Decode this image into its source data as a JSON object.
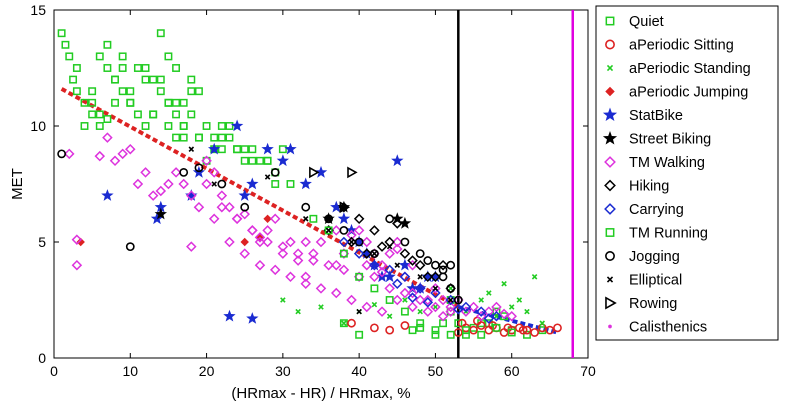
{
  "chart_data": {
    "type": "scatter",
    "title": "",
    "xlabel": "(HRmax - HR) / HRmax, %",
    "ylabel": "MET",
    "xlim": [
      0,
      70
    ],
    "ylim": [
      0,
      15
    ],
    "xticks": [
      "0",
      "10",
      "20",
      "30",
      "40",
      "50",
      "60",
      "70"
    ],
    "yticks": [
      "0",
      "5",
      "10",
      "15"
    ],
    "grid": false,
    "legend_position": "right-outside",
    "series": [
      {
        "name": "Quiet",
        "marker": "square-open",
        "color": "#22cc22",
        "x": [
          1,
          1.5,
          2,
          3,
          2.5,
          3,
          4,
          5,
          6,
          7,
          8,
          9,
          6,
          7,
          5,
          6,
          4,
          5,
          7,
          8,
          10,
          11,
          12,
          13,
          14,
          15,
          16,
          17,
          14,
          15,
          16,
          17,
          18,
          19,
          20,
          21,
          22,
          23,
          24,
          25,
          26,
          27,
          28,
          15,
          16,
          17,
          18,
          19,
          20,
          22,
          24,
          26,
          28,
          30,
          16,
          17,
          18,
          13,
          14,
          15,
          12,
          13,
          10,
          11,
          12,
          9,
          10,
          8,
          9,
          19,
          21,
          22,
          23,
          25,
          29,
          38,
          40,
          47,
          48,
          50,
          51,
          52,
          54,
          56,
          58,
          60,
          62,
          64,
          55,
          57,
          59,
          52,
          53
        ],
        "y": [
          14,
          13.5,
          13,
          12.5,
          12,
          11.5,
          11,
          10.5,
          10,
          12.5,
          12,
          13,
          13,
          13.5,
          11.5,
          10.5,
          10,
          11,
          10.3,
          11,
          11,
          10.5,
          10,
          10.5,
          11.5,
          10,
          9.5,
          10,
          14,
          13,
          12.5,
          11,
          11.5,
          11.5,
          10,
          9.5,
          10,
          9.5,
          9,
          8.5,
          9,
          8.5,
          8.5,
          11,
          10.5,
          10,
          10.5,
          9.5,
          8.5,
          9,
          9,
          8.5,
          8.5,
          9,
          11,
          9.5,
          12,
          12,
          12,
          11,
          12.5,
          10.5,
          11,
          12.5,
          12,
          12.5,
          11.5,
          12,
          11.5,
          9.5,
          9,
          9.5,
          10,
          9,
          7.5,
          1.5,
          1,
          1.2,
          1.3,
          1,
          1.5,
          2.5,
          1,
          1.5,
          2,
          1.2,
          1,
          1.2,
          1.3,
          1.5,
          1.8,
          2,
          1.5
        ]
      },
      {
        "name": "aPeriodic Sitting",
        "marker": "circle-open",
        "color": "#dd2222",
        "x": [
          53,
          54,
          55,
          56,
          57,
          58,
          59,
          60,
          61,
          62,
          63,
          64,
          65,
          66,
          53.5,
          55.5,
          57.5,
          59.5,
          61.5,
          39,
          42,
          44,
          46
        ],
        "y": [
          1.1,
          1.3,
          1.2,
          1.4,
          1.2,
          1.3,
          1.1,
          1.2,
          1.3,
          1.2,
          1.1,
          1.3,
          1.2,
          1.3,
          1.5,
          1.6,
          1.4,
          1.3,
          1.2,
          1.5,
          1.3,
          1.2,
          1.4
        ]
      },
      {
        "name": "aPeriodic Standing",
        "marker": "x-small",
        "color": "#22cc22",
        "x": [
          30,
          32,
          35,
          38,
          40,
          42,
          44,
          46,
          48,
          50,
          52,
          54,
          56,
          58,
          60,
          62,
          64,
          57,
          59,
          61,
          63
        ],
        "y": [
          2.5,
          2,
          2.2,
          1.5,
          2,
          2.3,
          1.8,
          2.5,
          2,
          2.2,
          3,
          2,
          2.5,
          1.8,
          2.2,
          2,
          1.5,
          2.8,
          3.2,
          2.5,
          3.5
        ]
      },
      {
        "name": "aPeriodic Jumping",
        "marker": "diamond-filled",
        "color": "#dd2222",
        "x": [
          3.5,
          25,
          27,
          28
        ],
        "y": [
          5,
          5,
          5.2,
          6
        ]
      },
      {
        "name": "StatBike",
        "marker": "star-filled",
        "color": "#1a2bd1",
        "x": [
          7,
          13.5,
          14,
          18,
          19,
          21,
          24,
          25,
          26,
          28,
          30,
          31,
          33,
          35,
          37,
          38,
          39,
          40,
          41,
          42,
          43,
          44,
          45,
          46,
          47,
          48,
          49,
          50,
          23,
          26
        ],
        "y": [
          7,
          6,
          6.5,
          7,
          8,
          9,
          10,
          7,
          7.5,
          9,
          8.5,
          9,
          7.5,
          8,
          6.5,
          6,
          5.5,
          5,
          4.5,
          4,
          3.5,
          3.5,
          8.5,
          4,
          3,
          3,
          3.5,
          3.5,
          1.8,
          1.7
        ]
      },
      {
        "name": "Street Biking",
        "marker": "star-filled",
        "color": "#000000",
        "x": [
          14,
          36,
          38,
          45,
          46
        ],
        "y": [
          6.2,
          6,
          6.5,
          6,
          5.8
        ]
      },
      {
        "name": "TM Walking",
        "marker": "diamond-open",
        "color": "#dd33dd",
        "x": [
          2,
          3,
          3,
          6,
          7,
          8,
          9,
          10,
          11,
          12,
          13,
          14,
          15,
          16,
          17,
          18,
          19,
          20,
          21,
          22,
          23,
          24,
          25,
          26,
          27,
          28,
          29,
          30,
          31,
          32,
          33,
          34,
          35,
          36,
          37,
          38,
          39,
          40,
          41,
          42,
          43,
          44,
          45,
          46,
          47,
          48,
          49,
          50,
          51,
          52,
          53,
          54,
          55,
          56,
          57,
          58,
          59,
          60,
          20,
          22,
          24,
          26,
          28,
          30,
          32,
          34,
          36,
          38,
          40,
          42,
          44,
          46,
          48,
          50,
          52,
          25,
          27,
          29,
          31,
          33,
          35,
          37,
          39,
          41,
          43,
          45,
          47,
          49,
          51,
          18,
          21,
          23,
          27,
          33,
          37,
          39,
          41,
          43,
          45,
          47
        ],
        "y": [
          8.8,
          5.1,
          4,
          8.7,
          9.5,
          8.5,
          8.8,
          9,
          7.5,
          8,
          7,
          7.2,
          7.5,
          8,
          7.5,
          7,
          6.5,
          8.5,
          8,
          7,
          6.5,
          6,
          6.2,
          5.5,
          5,
          5.5,
          6,
          4.5,
          5,
          4.5,
          5,
          4.2,
          5,
          5.5,
          4,
          4.5,
          5,
          5.5,
          5,
          4.5,
          4,
          4.5,
          5,
          3.5,
          4,
          3,
          2.5,
          3,
          2.5,
          2.2,
          2.5,
          2,
          2.2,
          1.8,
          2,
          2.2,
          1.9,
          1.8,
          7.5,
          6.5,
          6,
          5.5,
          5,
          4.8,
          4.2,
          4.5,
          4,
          3.8,
          3.5,
          3.5,
          3,
          2.8,
          2.5,
          2.2,
          2,
          4.5,
          4,
          3.8,
          3.5,
          3.2,
          3,
          2.8,
          2.5,
          2.2,
          2,
          2.5,
          2.2,
          2,
          1.8,
          4.8,
          6,
          5,
          5.2,
          3.5,
          5.5,
          5.3,
          4,
          3.7,
          4.7,
          2.8
        ]
      },
      {
        "name": "Hiking",
        "marker": "diamond-open",
        "color": "#000000",
        "x": [
          36,
          38,
          40,
          42,
          44,
          46,
          48,
          50,
          52,
          39,
          41,
          43,
          45,
          47,
          49,
          51
        ],
        "y": [
          5.5,
          6.5,
          6,
          5.5,
          5,
          4.5,
          4,
          3.5,
          3,
          5,
          4.5,
          4.8,
          5.8,
          4.2,
          3.5,
          4
        ]
      },
      {
        "name": "Carrying",
        "marker": "diamond-open",
        "color": "#1a2bd1",
        "x": [
          38,
          40,
          42,
          44,
          46,
          48,
          50,
          52,
          54,
          56,
          58,
          45,
          47,
          49,
          53,
          57
        ],
        "y": [
          5,
          4.5,
          4,
          3.8,
          3.5,
          3,
          2.8,
          2.5,
          2.2,
          2,
          1.8,
          3.2,
          2.6,
          2.4,
          2.1,
          1.7
        ]
      },
      {
        "name": "TM Running",
        "marker": "square-open",
        "color": "#22cc22",
        "x": [
          29,
          31,
          34,
          36,
          38,
          40,
          42,
          44,
          46,
          48,
          50,
          52,
          54,
          56,
          58,
          60
        ],
        "y": [
          8,
          7.5,
          6,
          5.5,
          4.5,
          3.5,
          3,
          2.5,
          2,
          1.5,
          1.2,
          1,
          1.2,
          1,
          1.3,
          1.1
        ]
      },
      {
        "name": "Jogging",
        "marker": "circle-open",
        "color": "#000000",
        "x": [
          1,
          10,
          17,
          19,
          22,
          25,
          29,
          33,
          36,
          38,
          40,
          42,
          44,
          46,
          48,
          50,
          51,
          52,
          53,
          52,
          51,
          49
        ],
        "y": [
          8.8,
          4.8,
          8,
          8.2,
          7.5,
          6.5,
          8,
          6.5,
          6,
          5.5,
          5,
          4.5,
          6,
          5,
          4.5,
          4,
          3.5,
          3,
          2.5,
          4,
          3.8,
          4.2
        ]
      },
      {
        "name": "Elliptical",
        "marker": "x-small",
        "color": "#000000",
        "x": [
          18,
          21,
          28,
          33,
          36,
          39,
          42,
          45,
          48,
          50,
          52,
          40,
          44
        ],
        "y": [
          9,
          7.5,
          7.8,
          6,
          5.5,
          5,
          4.5,
          4,
          3.5,
          3,
          2.5,
          2,
          4.8
        ]
      },
      {
        "name": "Rowing",
        "marker": "triangle-right-open",
        "color": "#000000",
        "x": [
          34,
          38,
          39
        ],
        "y": [
          8,
          6.5,
          8
        ]
      },
      {
        "name": "Calisthenics",
        "marker": "dot",
        "color": "#dd33dd",
        "x": [],
        "y": []
      }
    ],
    "fit_lines": [
      {
        "color": "#dd2222",
        "style": "dashed",
        "x": [
          1,
          53
        ],
        "y": [
          11.6,
          2.2
        ]
      },
      {
        "color": "#1a2bd1",
        "style": "dashed",
        "x": [
          53,
          66
        ],
        "y": [
          2.2,
          1.1
        ]
      }
    ],
    "reference_lines": [
      {
        "axis": "x",
        "value": 53,
        "color": "#000000"
      },
      {
        "axis": "x",
        "value": 68,
        "color": "#e000e0"
      }
    ]
  }
}
